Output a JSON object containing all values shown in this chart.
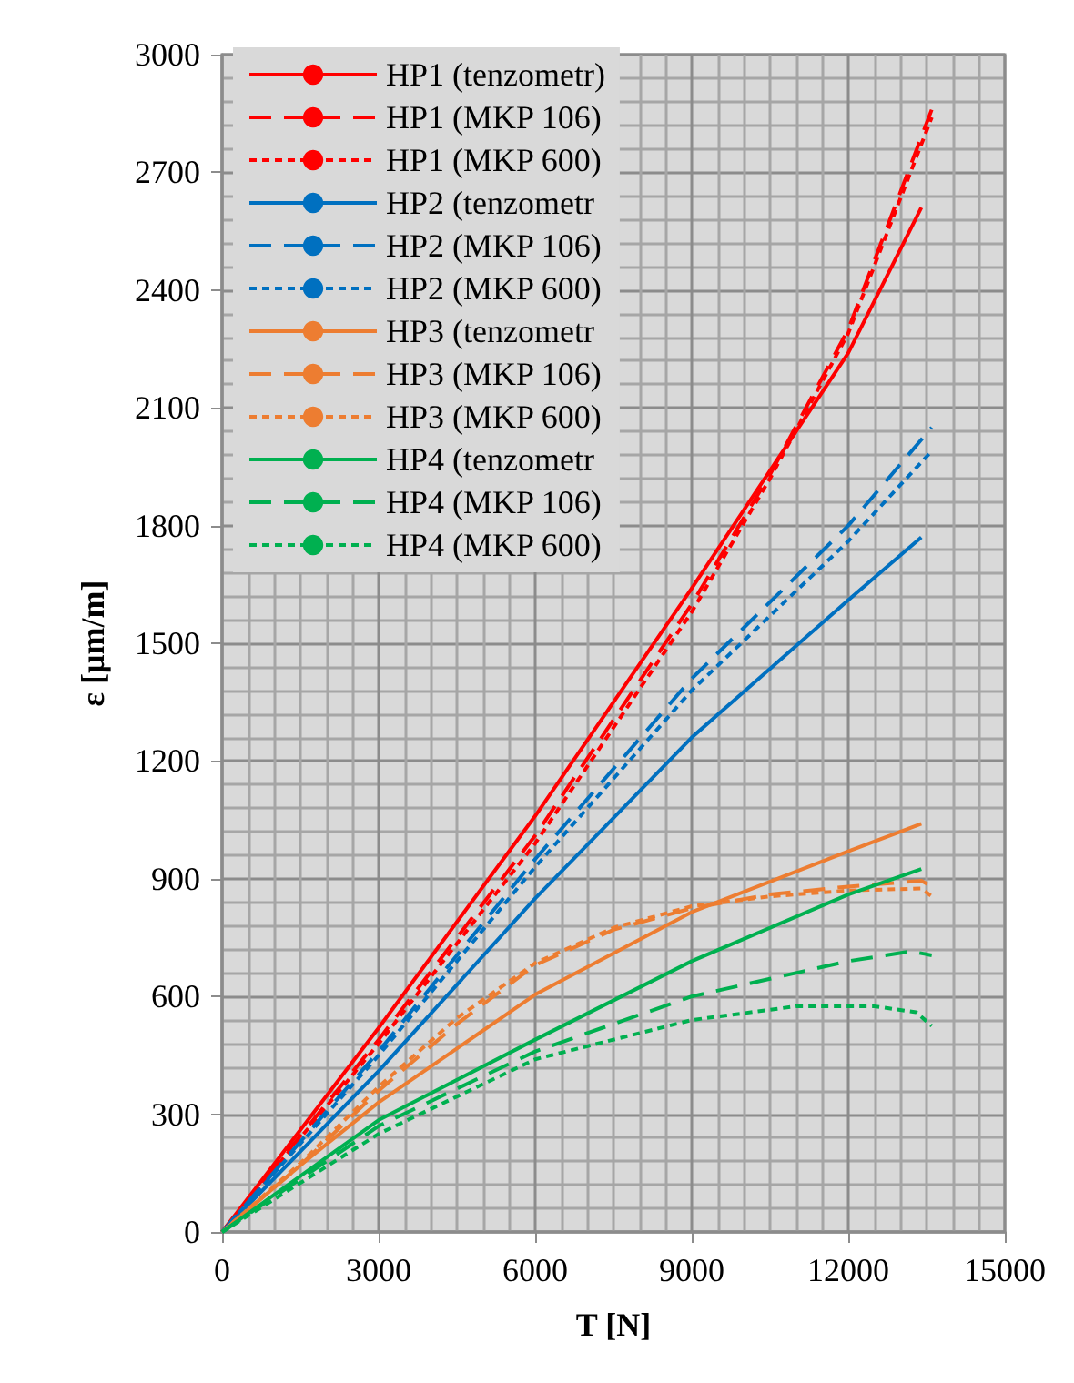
{
  "chart_data": {
    "type": "line",
    "xlabel": "T [N]",
    "ylabel": "ε [μm/m]",
    "xlim": [
      0,
      15000
    ],
    "ylim": [
      0,
      3000
    ],
    "xticks": [
      0,
      3000,
      6000,
      9000,
      12000,
      15000
    ],
    "yticks": [
      0,
      300,
      600,
      900,
      1200,
      1500,
      1800,
      2100,
      2400,
      2700,
      3000
    ],
    "grid": true,
    "legend": "top left",
    "marker": "none",
    "series": [
      {
        "name": "HP1 (tenzometr)",
        "color": "#ff0000",
        "line_style": "solid",
        "x": [
          0,
          3000,
          6000,
          9000,
          12000,
          13400
        ],
        "values": [
          0,
          520,
          1060,
          1640,
          2240,
          2610
        ]
      },
      {
        "name": "HP1 (MKP 106)",
        "color": "#ff0000",
        "line_style": "dashed",
        "x": [
          0,
          3000,
          6000,
          9000,
          10500,
          12000,
          13600
        ],
        "values": [
          0,
          490,
          1010,
          1600,
          1930,
          2300,
          2860
        ]
      },
      {
        "name": "HP1 (MKP 600)",
        "color": "#ff0000",
        "line_style": "dotted",
        "x": [
          0,
          3000,
          6000,
          9000,
          10500,
          12000,
          13600
        ],
        "values": [
          0,
          480,
          990,
          1580,
          1920,
          2290,
          2840
        ]
      },
      {
        "name": "HP2 (tenzometr",
        "color": "#0070c0",
        "line_style": "solid",
        "x": [
          0,
          3000,
          6000,
          9000,
          12000,
          13400
        ],
        "values": [
          0,
          410,
          850,
          1260,
          1610,
          1770
        ]
      },
      {
        "name": "HP2 (MKP 106)",
        "color": "#0070c0",
        "line_style": "dashed",
        "x": [
          0,
          3000,
          6000,
          9000,
          12000,
          13600
        ],
        "values": [
          0,
          460,
          950,
          1410,
          1800,
          2050
        ]
      },
      {
        "name": "HP2 (MKP 600)",
        "color": "#0070c0",
        "line_style": "dotted",
        "x": [
          0,
          3000,
          6000,
          9000,
          12000,
          13600
        ],
        "values": [
          0,
          450,
          930,
          1380,
          1760,
          1990
        ]
      },
      {
        "name": "HP3 (tenzometr",
        "color": "#ed7d31",
        "line_style": "solid",
        "x": [
          0,
          1500,
          3000,
          6000,
          9000,
          12000,
          13400
        ],
        "values": [
          0,
          170,
          330,
          605,
          815,
          970,
          1040
        ]
      },
      {
        "name": "HP3 (MKP 106)",
        "color": "#ed7d31",
        "line_style": "dashed",
        "x": [
          0,
          1500,
          3000,
          4500,
          6000,
          7500,
          9000,
          10500,
          12000,
          13400,
          13600
        ],
        "values": [
          0,
          170,
          360,
          530,
          680,
          770,
          825,
          860,
          880,
          895,
          880
        ]
      },
      {
        "name": "HP3 (MKP 600)",
        "color": "#ed7d31",
        "line_style": "dotted",
        "x": [
          0,
          1500,
          3000,
          4500,
          6000,
          7500,
          9000,
          10500,
          12000,
          13400,
          13600
        ],
        "values": [
          0,
          175,
          370,
          545,
          685,
          775,
          830,
          855,
          870,
          875,
          855
        ]
      },
      {
        "name": "HP4 (tenzometr",
        "color": "#00b050",
        "line_style": "solid",
        "x": [
          0,
          3000,
          6000,
          9000,
          12000,
          13400
        ],
        "values": [
          0,
          285,
          490,
          690,
          860,
          925
        ]
      },
      {
        "name": "HP4 (MKP 106)",
        "color": "#00b050",
        "line_style": "dashed",
        "x": [
          0,
          3000,
          6000,
          9000,
          12000,
          13200,
          13600
        ],
        "values": [
          0,
          270,
          460,
          600,
          690,
          715,
          705
        ]
      },
      {
        "name": "HP4 (MKP 600)",
        "color": "#00b050",
        "line_style": "dotted",
        "x": [
          0,
          3000,
          6000,
          9000,
          11000,
          12500,
          13300,
          13600
        ],
        "values": [
          0,
          250,
          440,
          540,
          575,
          575,
          560,
          525
        ]
      }
    ]
  }
}
